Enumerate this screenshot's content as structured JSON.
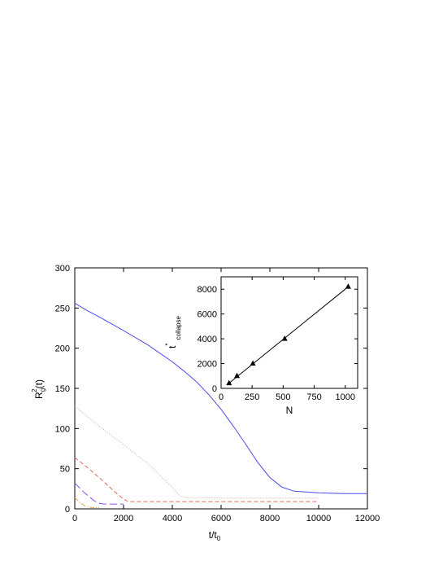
{
  "chart_data": [
    {
      "type": "line",
      "title": "",
      "xlabel": "t/t",
      "xlabel_subscript": "0",
      "ylabel": "R",
      "ylabel_subscript": "g",
      "ylabel_superscript": "2",
      "ylabel_suffix": "(t)",
      "xlim": [
        0,
        12000
      ],
      "ylim": [
        0,
        300
      ],
      "xticks": [
        0,
        2000,
        4000,
        6000,
        8000,
        10000,
        12000
      ],
      "yticks": [
        0,
        50,
        100,
        150,
        200,
        250,
        300
      ],
      "grid": false,
      "legend": "none",
      "series": [
        {
          "color": "#4a4af0",
          "dash": "solid",
          "x": [
            0,
            500,
            1000,
            2000,
            3000,
            4000,
            4500,
            5000,
            5500,
            6000,
            6500,
            7000,
            7500,
            8000,
            8500,
            9000,
            10000,
            11000,
            12000
          ],
          "y": [
            256,
            247,
            239,
            222,
            204,
            183,
            171,
            158,
            142,
            124,
            103,
            81,
            58,
            39,
            27,
            22,
            20,
            19,
            19
          ]
        },
        {
          "color": "#d7a0a0",
          "dash": "dotted",
          "x": [
            0,
            1000,
            2000,
            3000,
            4000,
            4300,
            4600,
            5000,
            6000,
            8000,
            10000
          ],
          "y": [
            128,
            103,
            80,
            56,
            27,
            16,
            14,
            14,
            13.5,
            13.5,
            13.5
          ]
        },
        {
          "color": "#e8675a",
          "dash": "dashed",
          "x": [
            0,
            500,
            1000,
            1500,
            2000,
            2200,
            2500,
            4000,
            6000,
            8000,
            10000
          ],
          "y": [
            64,
            52,
            39,
            25,
            12,
            9,
            9,
            9,
            9,
            9,
            9
          ]
        },
        {
          "color": "#8a4df0",
          "dash": "long-dash",
          "x": [
            0,
            200,
            400,
            600,
            800,
            1000,
            1200,
            1500,
            2000
          ],
          "y": [
            32,
            26,
            20,
            15,
            10,
            7,
            6,
            6,
            6
          ]
        },
        {
          "color": "#f0a04b",
          "dash": "dash-dot",
          "x": [
            0,
            200,
            400,
            600,
            800,
            1000
          ],
          "y": [
            14,
            8,
            4,
            2,
            1.5,
            1.5
          ]
        }
      ]
    },
    {
      "type": "scatter",
      "title": "",
      "xlabel": "N",
      "ylabel": "t",
      "ylabel_superscript": "*",
      "ylabel_subscript": "collapse",
      "xlim": [
        0,
        1100
      ],
      "ylim": [
        0,
        9000
      ],
      "xticks": [
        0,
        250,
        500,
        750,
        1000
      ],
      "yticks": [
        0,
        2000,
        4000,
        6000,
        8000
      ],
      "grid": false,
      "legend": "none",
      "points": [
        {
          "x": 64,
          "y": 420
        },
        {
          "x": 128,
          "y": 1000
        },
        {
          "x": 256,
          "y": 2000
        },
        {
          "x": 512,
          "y": 4000
        },
        {
          "x": 1024,
          "y": 8200
        }
      ],
      "fit_line": {
        "x": [
          64,
          1024
        ],
        "y": [
          420,
          8200
        ]
      }
    }
  ]
}
